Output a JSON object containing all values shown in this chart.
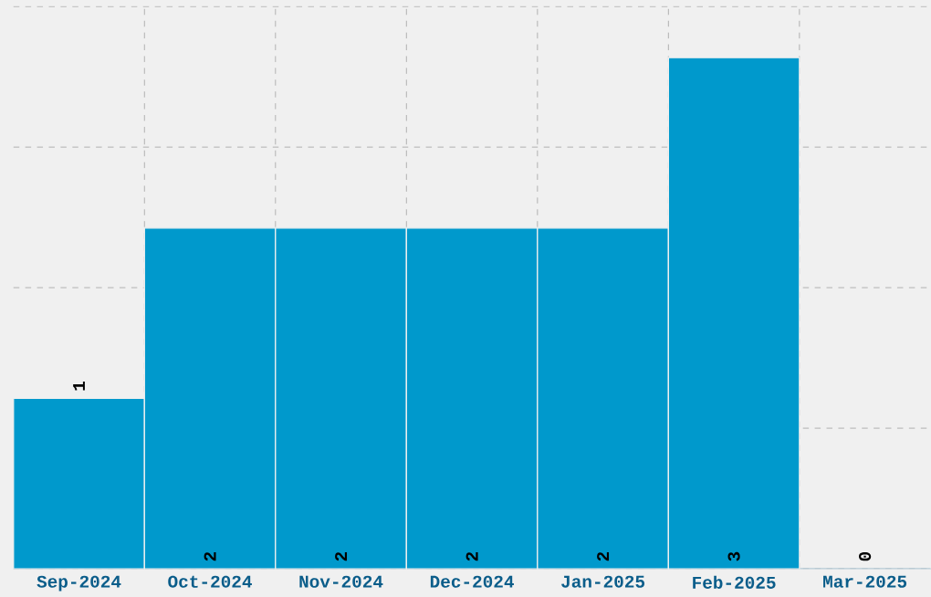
{
  "chart_data": {
    "type": "bar",
    "categories": [
      "Sep-2024",
      "Oct-2024",
      "Nov-2024",
      "Dec-2024",
      "Jan-2025",
      "Feb-2025",
      "Mar-2025"
    ],
    "values": [
      1,
      2,
      2,
      2,
      2,
      3,
      0
    ],
    "color": "#0099cc",
    "ylim": [
      0,
      3.3
    ],
    "yticks": [
      {
        "value": 0,
        "label": null
      },
      {
        "value": 0.825,
        "label": null
      },
      {
        "value": 1.65,
        "label": null
      },
      {
        "value": 2.475,
        "label": null
      },
      {
        "value": 3.3,
        "label": null
      }
    ],
    "tick_labels": "x",
    "grid": true,
    "data_labels": true
  }
}
